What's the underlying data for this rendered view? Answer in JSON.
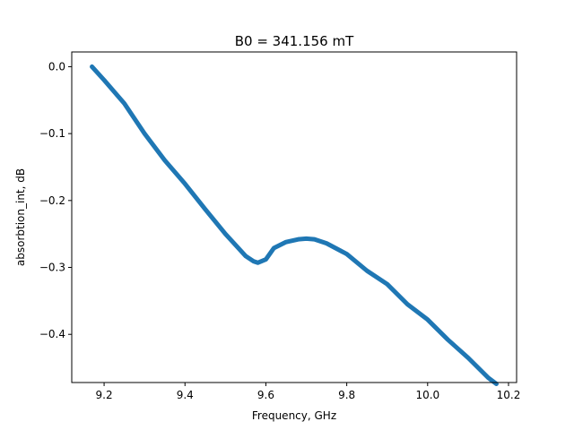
{
  "chart_data": {
    "type": "line",
    "title": "B0 = 341.156 mT",
    "xlabel": "Frequency, GHz",
    "ylabel": "absorbtion_int, dB",
    "xlim": [
      9.12,
      10.22
    ],
    "ylim": [
      -0.472,
      0.022
    ],
    "xticks": [
      9.2,
      9.4,
      9.6,
      9.8,
      10.0,
      10.2
    ],
    "xtick_labels": [
      "9.2",
      "9.4",
      "9.6",
      "9.8",
      "10.0",
      "10.2"
    ],
    "yticks": [
      0.0,
      -0.1,
      -0.2,
      -0.3,
      -0.4
    ],
    "ytick_labels": [
      "0.0",
      "−0.1",
      "−0.2",
      "−0.3",
      "−0.4"
    ],
    "grid": false,
    "series": [
      {
        "color": "#1f77b4",
        "x": [
          9.17,
          9.2,
          9.25,
          9.3,
          9.35,
          9.4,
          9.45,
          9.5,
          9.55,
          9.57,
          9.58,
          9.6,
          9.62,
          9.65,
          9.68,
          9.7,
          9.72,
          9.75,
          9.8,
          9.85,
          9.9,
          9.95,
          10.0,
          10.05,
          10.1,
          10.15,
          10.17
        ],
        "y": [
          0.0,
          -0.02,
          -0.055,
          -0.1,
          -0.14,
          -0.175,
          -0.213,
          -0.25,
          -0.283,
          -0.291,
          -0.293,
          -0.288,
          -0.271,
          -0.262,
          -0.258,
          -0.257,
          -0.258,
          -0.264,
          -0.28,
          -0.305,
          -0.325,
          -0.355,
          -0.378,
          -0.408,
          -0.435,
          -0.465,
          -0.474
        ]
      }
    ]
  }
}
